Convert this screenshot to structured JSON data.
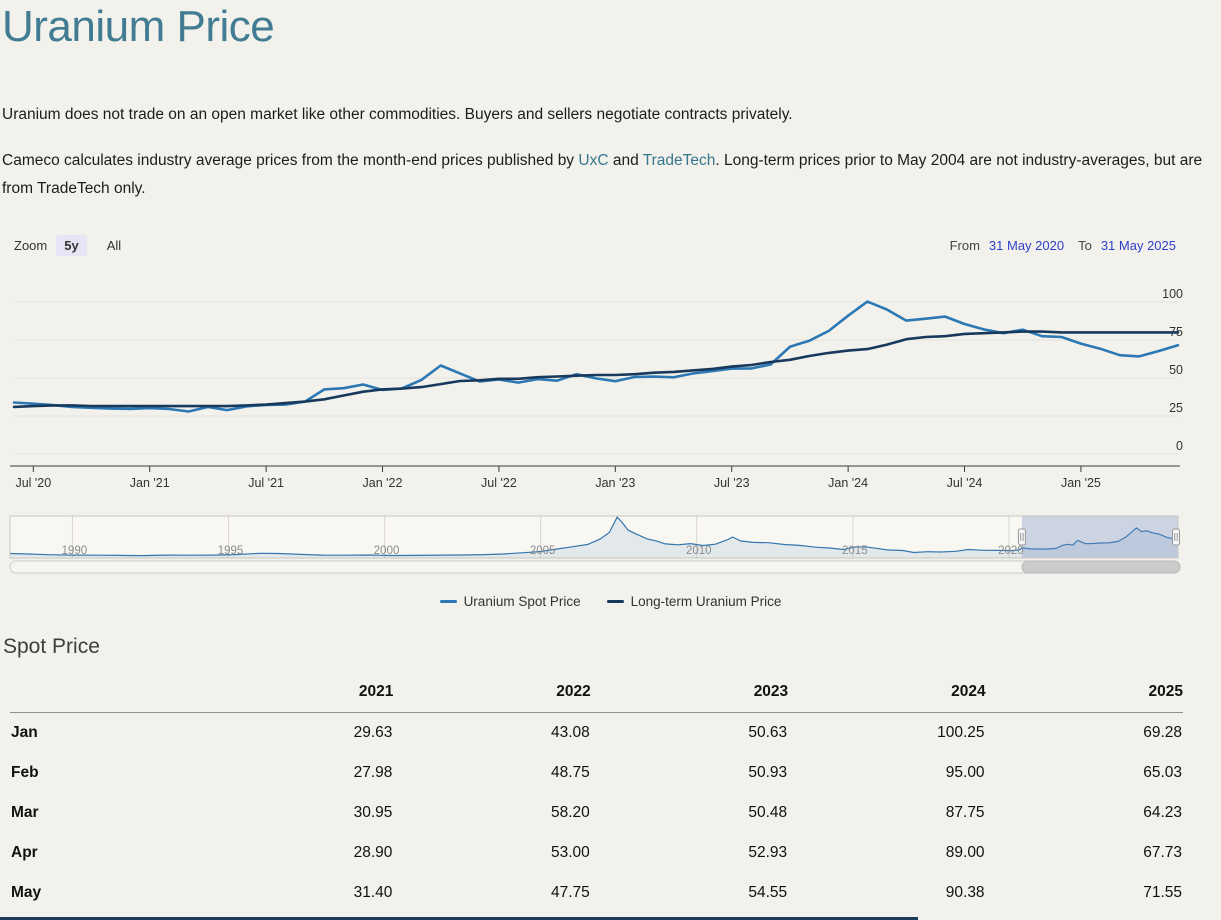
{
  "page": {
    "title": "Uranium Price",
    "intro_1": "Uranium does not trade on an open market like other commodities. Buyers and sellers negotiate contracts privately.",
    "intro_2_pre": "Cameco calculates industry average prices from the month-end prices published by ",
    "link_uxc": "UxC",
    "intro_2_and": " and ",
    "link_tradetech": "TradeTech",
    "intro_2_post": ". Long-term prices prior to May 2004 are not industry-averages, but are from TradeTech only."
  },
  "range_selector": {
    "zoom_label": "Zoom",
    "buttons": [
      {
        "label": "5y",
        "selected": true
      },
      {
        "label": "All",
        "selected": false
      }
    ],
    "from_label": "From",
    "from_value": "31 May 2020",
    "to_label": "To",
    "to_value": "31 May 2025"
  },
  "legend": [
    {
      "label": "Uranium Spot Price",
      "color": "#2b78b4"
    },
    {
      "label": "Long-term Uranium Price",
      "color": "#17395c"
    }
  ],
  "colors": {
    "accent_teal": "#417c93",
    "link_teal": "#35788e",
    "range_date_blue": "#2f41cc",
    "spot_line": "#2b78b4",
    "longterm_line": "#17395c",
    "navigator_mask": "rgba(102,133,194,0.3)",
    "background": "#f3f1eb"
  },
  "chart_data": [
    {
      "type": "line",
      "title": "",
      "xlabel": "",
      "ylabel": "",
      "ylim": [
        0,
        100
      ],
      "y_ticks": [
        0,
        25,
        50,
        75,
        100
      ],
      "x_range": [
        2020.417,
        2025.417
      ],
      "x_ticks": [
        {
          "t": 2020.5,
          "label": "Jul '20"
        },
        {
          "t": 2021.0,
          "label": "Jan '21"
        },
        {
          "t": 2021.5,
          "label": "Jul '21"
        },
        {
          "t": 2022.0,
          "label": "Jan '22"
        },
        {
          "t": 2022.5,
          "label": "Jul '22"
        },
        {
          "t": 2023.0,
          "label": "Jan '23"
        },
        {
          "t": 2023.5,
          "label": "Jul '23"
        },
        {
          "t": 2024.0,
          "label": "Jan '24"
        },
        {
          "t": 2024.5,
          "label": "Jul '24"
        },
        {
          "t": 2025.0,
          "label": "Jan '25"
        }
      ],
      "x": [
        2020.417,
        2020.5,
        2020.583,
        2020.667,
        2020.75,
        2020.833,
        2020.917,
        2021.0,
        2021.083,
        2021.167,
        2021.25,
        2021.333,
        2021.417,
        2021.5,
        2021.583,
        2021.667,
        2021.75,
        2021.833,
        2021.917,
        2022.0,
        2022.083,
        2022.167,
        2022.25,
        2022.333,
        2022.417,
        2022.5,
        2022.583,
        2022.667,
        2022.75,
        2022.833,
        2022.917,
        2023.0,
        2023.083,
        2023.167,
        2023.25,
        2023.333,
        2023.417,
        2023.5,
        2023.583,
        2023.667,
        2023.75,
        2023.833,
        2023.917,
        2024.0,
        2024.083,
        2024.167,
        2024.25,
        2024.333,
        2024.417,
        2024.5,
        2024.583,
        2024.667,
        2024.75,
        2024.833,
        2024.917,
        2025.0,
        2025.083,
        2025.167,
        2025.25,
        2025.333,
        2025.417
      ],
      "series": [
        {
          "name": "Uranium Spot Price",
          "color": "#2b78b4",
          "values": [
            33.9,
            33.1,
            32.2,
            30.9,
            30.4,
            29.9,
            29.7,
            30.2,
            29.63,
            27.98,
            30.95,
            28.9,
            31.4,
            32.3,
            32.5,
            34.5,
            42.5,
            43.3,
            45.75,
            42.1,
            43.08,
            48.75,
            58.2,
            53.0,
            47.75,
            49.0,
            47.0,
            49.25,
            48.25,
            52.5,
            49.75,
            47.9,
            50.63,
            50.93,
            50.48,
            52.93,
            54.55,
            56.2,
            56.25,
            58.9,
            70.5,
            74.5,
            81.0,
            91.0,
            100.25,
            95.0,
            87.75,
            89.0,
            90.38,
            85.5,
            82.0,
            79.5,
            81.75,
            77.5,
            77.0,
            72.6,
            69.28,
            65.03,
            64.23,
            67.73,
            71.55
          ]
        },
        {
          "name": "Long-term Uranium Price",
          "color": "#17395c",
          "values": [
            31.0,
            31.5,
            32.0,
            32.0,
            31.5,
            31.5,
            31.5,
            31.5,
            31.5,
            31.5,
            31.5,
            31.5,
            32.0,
            32.5,
            33.5,
            34.5,
            36.0,
            38.5,
            41.0,
            42.5,
            43.0,
            44.0,
            46.0,
            48.0,
            48.5,
            49.5,
            49.5,
            50.5,
            51.0,
            51.5,
            52.0,
            52.0,
            52.5,
            53.5,
            54.0,
            55.0,
            56.0,
            57.5,
            58.5,
            60.5,
            62.0,
            64.5,
            66.5,
            68.0,
            69.0,
            72.0,
            75.5,
            77.0,
            77.5,
            79.0,
            79.5,
            80.0,
            80.5,
            80.5,
            80.0,
            80.0,
            80.0,
            80.0,
            80.0,
            80.0,
            80.0
          ]
        }
      ]
    },
    {
      "type": "area",
      "name": "Uranium Spot Price (navigator, full history)",
      "x_range": [
        1988,
        2025.417
      ],
      "labels": [
        1990,
        1995,
        2000,
        2005,
        2010,
        2015,
        2020
      ],
      "selected_range": [
        2020.417,
        2025.417
      ],
      "points": [
        [
          1988.0,
          15
        ],
        [
          1988.6,
          13.5
        ],
        [
          1989.2,
          11
        ],
        [
          1990,
          9.7
        ],
        [
          1990.8,
          9.2
        ],
        [
          1991.5,
          8.6
        ],
        [
          1992.2,
          8.0
        ],
        [
          1993,
          9.7
        ],
        [
          1993.8,
          9.4
        ],
        [
          1994.5,
          9.6
        ],
        [
          1995.2,
          11.4
        ],
        [
          1996,
          15.7
        ],
        [
          1996.6,
          15.0
        ],
        [
          1997.3,
          11.9
        ],
        [
          1998,
          9.6
        ],
        [
          1998.8,
          9.2
        ],
        [
          1999.5,
          10.1
        ],
        [
          2000.2,
          8.3
        ],
        [
          2001,
          8.7
        ],
        [
          2001.8,
          9.5
        ],
        [
          2002.5,
          10.1
        ],
        [
          2003.2,
          11.2
        ],
        [
          2003.8,
          13.5
        ],
        [
          2004.4,
          17.5
        ],
        [
          2005,
          21.8
        ],
        [
          2005.5,
          29.5
        ],
        [
          2006,
          37.5
        ],
        [
          2006.5,
          45.0
        ],
        [
          2006.9,
          63.0
        ],
        [
          2007.2,
          85.0
        ],
        [
          2007.45,
          136.0
        ],
        [
          2007.6,
          120.0
        ],
        [
          2007.8,
          93.0
        ],
        [
          2008.1,
          78.0
        ],
        [
          2008.4,
          64.0
        ],
        [
          2008.7,
          57.0
        ],
        [
          2009,
          47.0
        ],
        [
          2009.4,
          44.0
        ],
        [
          2009.8,
          48.0
        ],
        [
          2010.2,
          41.8
        ],
        [
          2010.6,
          46.0
        ],
        [
          2011.0,
          62.0
        ],
        [
          2011.15,
          70.0
        ],
        [
          2011.4,
          57.0
        ],
        [
          2011.8,
          52.0
        ],
        [
          2012.3,
          51.0
        ],
        [
          2012.8,
          45.0
        ],
        [
          2013.3,
          42.0
        ],
        [
          2013.8,
          36.0
        ],
        [
          2014.3,
          33.0
        ],
        [
          2014.7,
          28.5
        ],
        [
          2015.1,
          37.5
        ],
        [
          2015.5,
          36.0
        ],
        [
          2016.1,
          27.0
        ],
        [
          2016.6,
          25.0
        ],
        [
          2016.95,
          18.5
        ],
        [
          2017.4,
          21.0
        ],
        [
          2017.8,
          20.0
        ],
        [
          2018.3,
          22.5
        ],
        [
          2018.7,
          28.5
        ],
        [
          2019.2,
          25.8
        ],
        [
          2019.7,
          25.5
        ],
        [
          2020.1,
          24.5
        ],
        [
          2020.33,
          27.3
        ],
        [
          2020.42,
          34.0
        ],
        [
          2020.7,
          30.5
        ],
        [
          2021.1,
          29.6
        ],
        [
          2021.5,
          31.5
        ],
        [
          2021.72,
          42.5
        ],
        [
          2021.9,
          45.8
        ],
        [
          2022.05,
          43.1
        ],
        [
          2022.2,
          58.2
        ],
        [
          2022.33,
          53.0
        ],
        [
          2022.45,
          47.8
        ],
        [
          2022.7,
          48.5
        ],
        [
          2022.9,
          50.0
        ],
        [
          2023.2,
          50.5
        ],
        [
          2023.5,
          55.5
        ],
        [
          2023.75,
          70.5
        ],
        [
          2023.95,
          88.0
        ],
        [
          2024.08,
          100.3
        ],
        [
          2024.25,
          88.0
        ],
        [
          2024.42,
          90.4
        ],
        [
          2024.6,
          84.0
        ],
        [
          2024.8,
          80.0
        ],
        [
          2025.05,
          69.3
        ],
        [
          2025.25,
          64.2
        ],
        [
          2025.42,
          71.6
        ]
      ]
    }
  ],
  "spot_price_table": {
    "heading": "Spot Price",
    "columns": [
      "2021",
      "2022",
      "2023",
      "2024",
      "2025"
    ],
    "rows": [
      {
        "month": "Jan",
        "values": [
          "29.63",
          "43.08",
          "50.63",
          "100.25",
          "69.28"
        ]
      },
      {
        "month": "Feb",
        "values": [
          "27.98",
          "48.75",
          "50.93",
          "95.00",
          "65.03"
        ]
      },
      {
        "month": "Mar",
        "values": [
          "30.95",
          "58.20",
          "50.48",
          "87.75",
          "64.23"
        ]
      },
      {
        "month": "Apr",
        "values": [
          "28.90",
          "53.00",
          "52.93",
          "89.00",
          "67.73"
        ]
      },
      {
        "month": "May",
        "values": [
          "31.40",
          "47.75",
          "54.55",
          "90.38",
          "71.55"
        ]
      }
    ]
  }
}
